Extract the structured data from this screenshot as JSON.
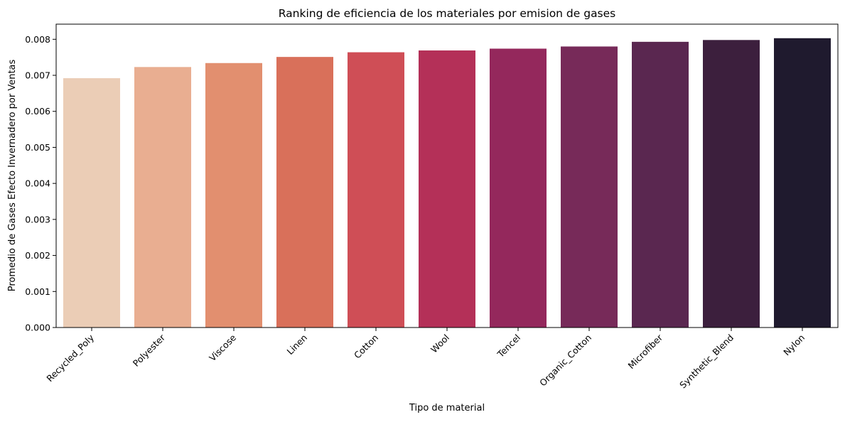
{
  "chart_data": {
    "type": "bar",
    "title": "Ranking de eficiencia de los materiales por emision de gases",
    "xlabel": "Tipo de material",
    "ylabel": "Promedio de Gases Efecto Invernadero por Ventas",
    "categories": [
      "Recycled_Poly",
      "Polyester",
      "Viscose",
      "Linen",
      "Cotton",
      "Wool",
      "Tencel",
      "Organic_Cotton",
      "Microfiber",
      "Synthetic_Blend",
      "Nylon"
    ],
    "values": [
      0.00692,
      0.00723,
      0.00734,
      0.00751,
      0.00764,
      0.00769,
      0.00774,
      0.0078,
      0.00793,
      0.00798,
      0.00803
    ],
    "colors": [
      "#ebcdb6",
      "#e9ae91",
      "#e28f6f",
      "#d9705a",
      "#cf4e56",
      "#b43058",
      "#94285c",
      "#772a59",
      "#5a2750",
      "#3c1f3d",
      "#1f1a2e"
    ],
    "ylim": [
      0,
      0.00842
    ],
    "yticks": [
      "0.000",
      "0.001",
      "0.002",
      "0.003",
      "0.004",
      "0.005",
      "0.006",
      "0.007",
      "0.008"
    ],
    "grid": false,
    "legend": "none"
  }
}
